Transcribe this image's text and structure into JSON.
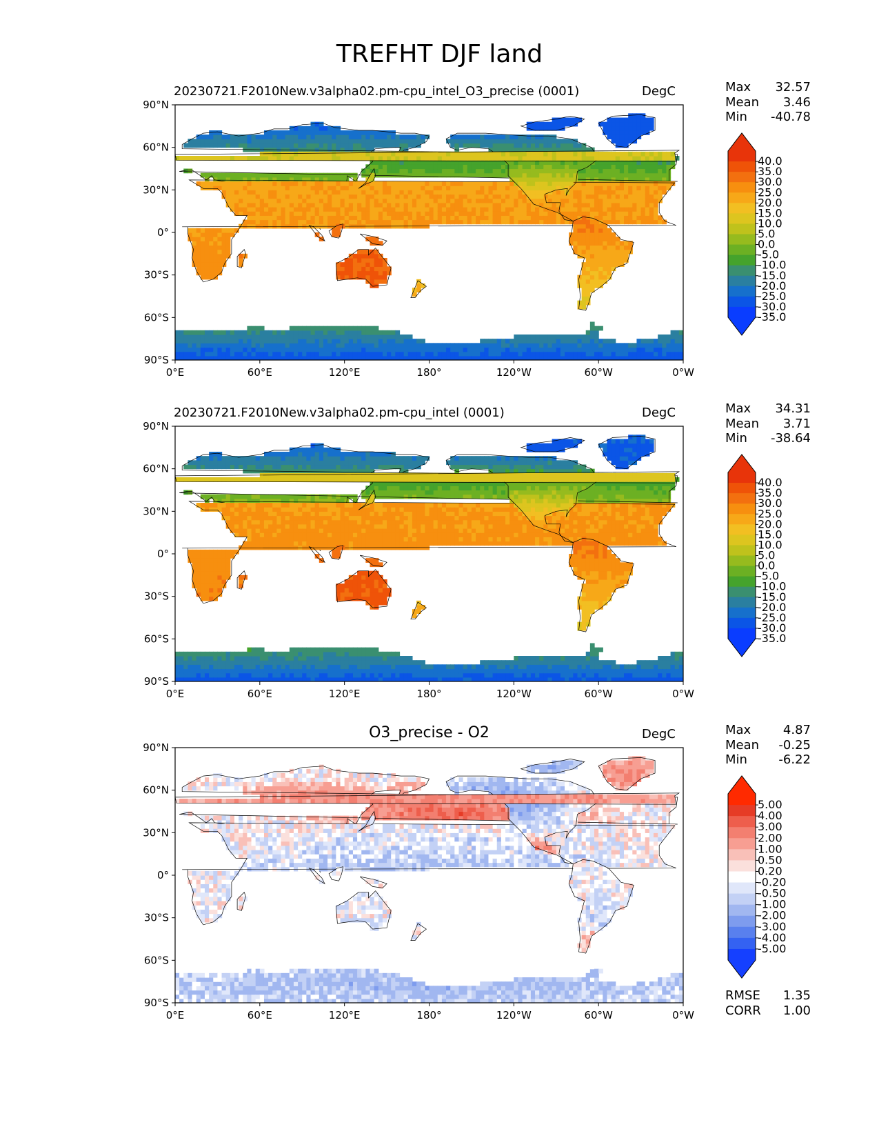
{
  "figure_title": "TREFHT DJF land",
  "colors": {
    "land_temperature_levels": [
      "#0a3dff",
      "#0b55e6",
      "#1670cc",
      "#2a7fa0",
      "#3a8f70",
      "#45a32c",
      "#6cb023",
      "#96bb1e",
      "#bfc21c",
      "#ddc51f",
      "#f2bf22",
      "#f7a818",
      "#f78f0f",
      "#f3700f",
      "#ef5308",
      "#e8340a"
    ],
    "difference_levels": [
      "#1540ff",
      "#3462f2",
      "#5980ee",
      "#7e9cee",
      "#a1b7f0",
      "#c3d1f5",
      "#e0e7fa",
      "#ffffff",
      "#fbe0dc",
      "#f9c0b8",
      "#f79e92",
      "#f37f70",
      "#ee5e4c",
      "#e63b26",
      "#ff2a00"
    ],
    "coastline": "#000000",
    "ocean": "#ffffff"
  },
  "chart_data": [
    {
      "type": "heatmap",
      "panel": "test",
      "title": "20230721.F2010New.v3alpha02.pm-cpu_intel_O3_precise (0001)",
      "units": "DegC",
      "variable": "TREFHT",
      "season": "DJF",
      "region": "land",
      "stats": {
        "max": "32.57",
        "mean": "3.46",
        "min": "-40.78"
      },
      "x_ticks": [
        "0°E",
        "60°E",
        "120°E",
        "180°",
        "120°W",
        "60°W",
        "0°W"
      ],
      "y_ticks": [
        "90°N",
        "60°N",
        "30°N",
        "0°",
        "30°S",
        "60°S",
        "90°S"
      ],
      "colorbar_ticks": [
        "40.0",
        "35.0",
        "30.0",
        "25.0",
        "20.0",
        "15.0",
        "10.0",
        "5.0",
        "0.0",
        "-5.0",
        "-10.0",
        "-15.0",
        "-20.0",
        "-25.0",
        "-30.0",
        "-35.0"
      ],
      "colorbar_extend": "both",
      "description": "Land surface air temperature; warm (orange) tropics and Australia, cold (blue) Siberia, Greenland and Antarctica"
    },
    {
      "type": "heatmap",
      "panel": "reference",
      "title": "20230721.F2010New.v3alpha02.pm-cpu_intel (0001)",
      "units": "DegC",
      "stats": {
        "max": "34.31",
        "mean": "3.71",
        "min": "-38.64"
      },
      "x_ticks": [
        "0°E",
        "60°E",
        "120°E",
        "180°",
        "120°W",
        "60°W",
        "0°W"
      ],
      "y_ticks": [
        "90°N",
        "60°N",
        "30°N",
        "0°",
        "30°S",
        "60°S",
        "90°S"
      ],
      "colorbar_ticks": [
        "40.0",
        "35.0",
        "30.0",
        "25.0",
        "20.0",
        "15.0",
        "10.0",
        "5.0",
        "0.0",
        "-5.0",
        "-10.0",
        "-15.0",
        "-20.0",
        "-25.0",
        "-30.0",
        "-35.0"
      ],
      "colorbar_extend": "both"
    },
    {
      "type": "heatmap",
      "panel": "difference",
      "title": "O3_precise - O2",
      "units": "DegC",
      "stats": {
        "max": "4.87",
        "mean": "-0.25",
        "min": "-6.22"
      },
      "x_ticks": [
        "0°E",
        "60°E",
        "120°E",
        "180°",
        "120°W",
        "60°W",
        "0°W"
      ],
      "y_ticks": [
        "90°N",
        "60°N",
        "30°N",
        "0°",
        "30°S",
        "60°S",
        "90°S"
      ],
      "colorbar_ticks": [
        "5.00",
        "4.00",
        "3.00",
        "2.00",
        "1.00",
        "0.50",
        "0.20",
        "-0.20",
        "-0.50",
        "-1.00",
        "-2.00",
        "-3.00",
        "-4.00",
        "-5.00"
      ],
      "colorbar_extend": "both",
      "metrics": {
        "rmse": "1.35",
        "corr": "1.00"
      },
      "description": "Warming over northern Eurasia and southeastern North America; cooling over northeast Siberia, Canada and Antarctica"
    }
  ],
  "labels": {
    "max": "Max",
    "mean": "Mean",
    "min": "Min",
    "rmse": "RMSE",
    "corr": "CORR"
  }
}
